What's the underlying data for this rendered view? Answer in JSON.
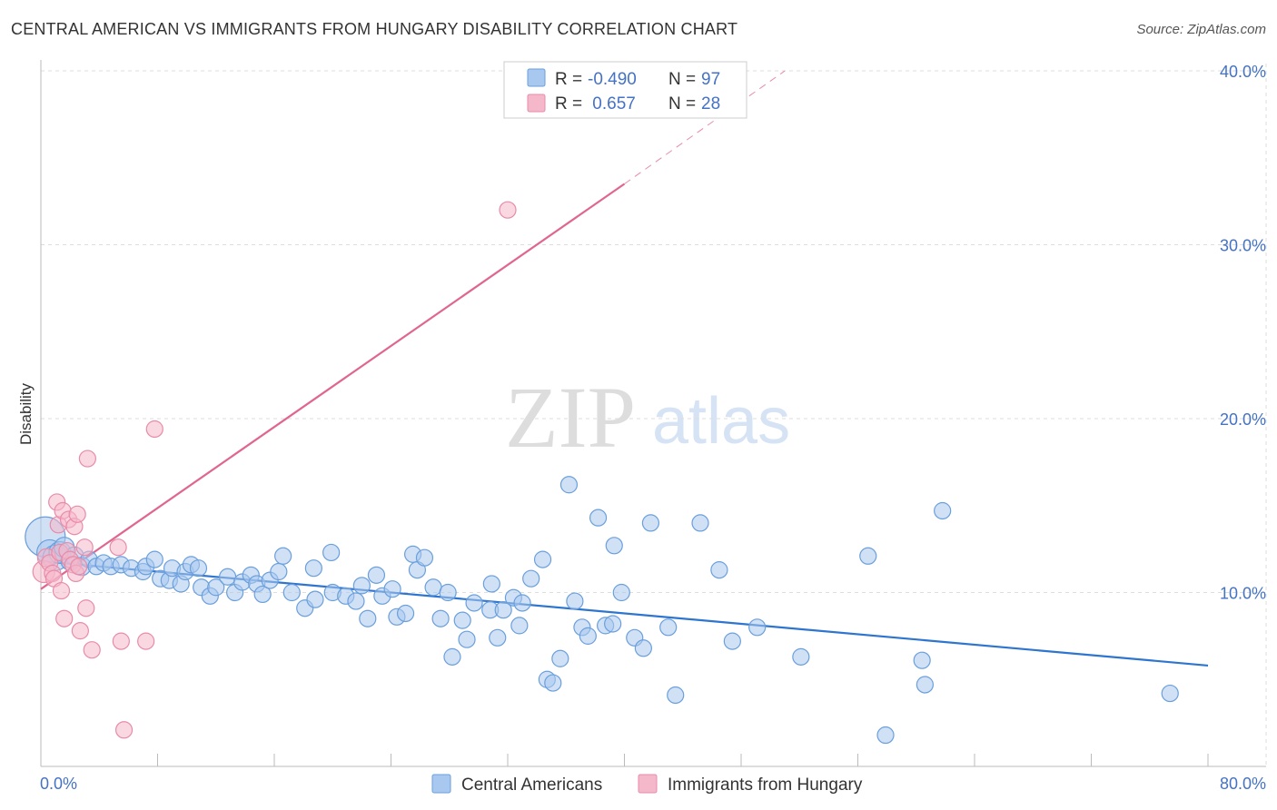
{
  "header": {
    "title": "CENTRAL AMERICAN VS IMMIGRANTS FROM HUNGARY DISABILITY CORRELATION CHART",
    "source": "Source: ZipAtlas.com"
  },
  "watermark": {
    "zip": "ZIP",
    "atlas": "atlas"
  },
  "colors": {
    "blue_fill": "#a9c8ef",
    "blue_stroke": "#6a9fdc",
    "blue_line": "#2e75d0",
    "pink_fill": "#f5b8cb",
    "pink_stroke": "#e88ba8",
    "pink_line": "#e06690",
    "grid": "#dddddd",
    "tick_label": "#4472c4"
  },
  "chart_data": {
    "type": "scatter",
    "title": "CENTRAL AMERICAN VS IMMIGRANTS FROM HUNGARY DISABILITY CORRELATION CHART",
    "xlabel": "",
    "ylabel": "Disability",
    "xlim": [
      0,
      80
    ],
    "ylim": [
      0,
      40
    ],
    "x_tick_labels": {
      "min": "0.0%",
      "max": "80.0%"
    },
    "y_ticks": [
      10,
      20,
      30,
      40
    ],
    "y_tick_labels": [
      "10.0%",
      "20.0%",
      "30.0%",
      "40.0%"
    ],
    "grid": true,
    "legend": {
      "position": "top-center",
      "rows": [
        {
          "r_label": "R =",
          "r_value": "-0.490",
          "n_label": "N =",
          "n_value": "97"
        },
        {
          "r_label": "R =",
          "r_value": " 0.657",
          "n_label": "N =",
          "n_value": "28"
        }
      ]
    },
    "series": [
      {
        "name": "Central Americans",
        "trend": {
          "x0": 0,
          "y0": 11.8,
          "x1": 80,
          "y1": 5.8,
          "dashed_to": null
        },
        "points": [
          [
            0.3,
            13.2,
            22
          ],
          [
            0.6,
            12.3,
            14
          ],
          [
            1.0,
            12.0,
            14
          ],
          [
            1.3,
            12.3,
            12
          ],
          [
            1.6,
            12.6,
            11
          ],
          [
            2.0,
            11.8,
            10
          ],
          [
            2.3,
            12.1,
            10
          ],
          [
            2.8,
            11.5,
            10
          ],
          [
            3.3,
            11.9,
            9
          ],
          [
            3.8,
            11.5,
            9
          ],
          [
            4.3,
            11.7,
            9
          ],
          [
            4.8,
            11.5,
            9
          ],
          [
            5.5,
            11.6,
            9
          ],
          [
            6.2,
            11.4,
            9
          ],
          [
            7.0,
            11.2,
            9
          ],
          [
            7.2,
            11.5,
            9
          ],
          [
            7.8,
            11.9,
            9
          ],
          [
            8.2,
            10.8,
            9
          ],
          [
            8.8,
            10.7,
            9
          ],
          [
            9.0,
            11.4,
            9
          ],
          [
            9.6,
            10.5,
            9
          ],
          [
            9.9,
            11.2,
            9
          ],
          [
            10.3,
            11.6,
            9
          ],
          [
            10.8,
            11.4,
            9
          ],
          [
            11.0,
            10.3,
            9
          ],
          [
            11.6,
            9.8,
            9
          ],
          [
            12.0,
            10.3,
            9
          ],
          [
            12.8,
            10.9,
            9
          ],
          [
            13.3,
            10.0,
            9
          ],
          [
            13.8,
            10.6,
            9
          ],
          [
            14.4,
            11.0,
            9
          ],
          [
            14.8,
            10.5,
            9
          ],
          [
            15.2,
            9.9,
            9
          ],
          [
            15.7,
            10.7,
            9
          ],
          [
            16.3,
            11.2,
            9
          ],
          [
            16.6,
            12.1,
            9
          ],
          [
            17.2,
            10.0,
            9
          ],
          [
            18.1,
            9.1,
            9
          ],
          [
            18.8,
            9.6,
            9
          ],
          [
            18.7,
            11.4,
            9
          ],
          [
            19.9,
            12.3,
            9
          ],
          [
            20.0,
            10.0,
            9
          ],
          [
            20.9,
            9.8,
            9
          ],
          [
            21.6,
            9.5,
            9
          ],
          [
            22.0,
            10.4,
            9
          ],
          [
            22.4,
            8.5,
            9
          ],
          [
            23.0,
            11.0,
            9
          ],
          [
            23.4,
            9.8,
            9
          ],
          [
            24.1,
            10.2,
            9
          ],
          [
            24.4,
            8.6,
            9
          ],
          [
            25.0,
            8.8,
            9
          ],
          [
            25.5,
            12.2,
            9
          ],
          [
            25.8,
            11.3,
            9
          ],
          [
            26.3,
            12.0,
            9
          ],
          [
            26.9,
            10.3,
            9
          ],
          [
            27.4,
            8.5,
            9
          ],
          [
            27.9,
            10.0,
            9
          ],
          [
            28.2,
            6.3,
            9
          ],
          [
            28.9,
            8.4,
            9
          ],
          [
            29.2,
            7.3,
            9
          ],
          [
            29.7,
            9.4,
            9
          ],
          [
            30.8,
            9.0,
            9
          ],
          [
            30.9,
            10.5,
            9
          ],
          [
            31.3,
            7.4,
            9
          ],
          [
            31.7,
            9.0,
            9
          ],
          [
            32.4,
            9.7,
            9
          ],
          [
            32.8,
            8.1,
            9
          ],
          [
            33.0,
            9.4,
            9
          ],
          [
            33.6,
            10.8,
            9
          ],
          [
            34.4,
            11.9,
            9
          ],
          [
            34.7,
            5.0,
            9
          ],
          [
            35.1,
            4.8,
            9
          ],
          [
            35.6,
            6.2,
            9
          ],
          [
            36.2,
            16.2,
            9
          ],
          [
            36.6,
            9.5,
            9
          ],
          [
            37.1,
            8.0,
            9
          ],
          [
            37.5,
            7.5,
            9
          ],
          [
            38.2,
            14.3,
            9
          ],
          [
            38.7,
            8.1,
            9
          ],
          [
            39.2,
            8.2,
            9
          ],
          [
            39.3,
            12.7,
            9
          ],
          [
            39.8,
            10.0,
            9
          ],
          [
            40.7,
            7.4,
            9
          ],
          [
            41.3,
            6.8,
            9
          ],
          [
            41.8,
            14.0,
            9
          ],
          [
            43.0,
            8.0,
            9
          ],
          [
            43.5,
            4.1,
            9
          ],
          [
            45.2,
            14.0,
            9
          ],
          [
            46.5,
            11.3,
            9
          ],
          [
            47.4,
            7.2,
            9
          ],
          [
            49.1,
            8.0,
            9
          ],
          [
            52.1,
            6.3,
            9
          ],
          [
            56.7,
            12.1,
            9
          ],
          [
            57.9,
            1.8,
            9
          ],
          [
            60.4,
            6.1,
            9
          ],
          [
            60.6,
            4.7,
            9
          ],
          [
            61.8,
            14.7,
            9
          ],
          [
            77.4,
            4.2,
            9
          ]
        ]
      },
      {
        "name": "Immigrants from Hungary",
        "trend": {
          "x0": 0,
          "y0": 10.2,
          "x1": 40,
          "y1": 33.5,
          "dashed_to": [
            51,
            40
          ]
        },
        "points": [
          [
            0.2,
            11.2,
            12
          ],
          [
            0.4,
            12.0,
            10
          ],
          [
            0.6,
            11.7,
            9
          ],
          [
            0.8,
            11.1,
            9
          ],
          [
            0.9,
            10.8,
            9
          ],
          [
            1.1,
            15.2,
            9
          ],
          [
            1.2,
            13.9,
            9
          ],
          [
            1.3,
            12.3,
            9
          ],
          [
            1.4,
            10.1,
            9
          ],
          [
            1.5,
            14.7,
            9
          ],
          [
            1.6,
            8.5,
            9
          ],
          [
            1.8,
            12.4,
            9
          ],
          [
            1.9,
            14.2,
            9
          ],
          [
            2.0,
            11.9,
            9
          ],
          [
            2.2,
            11.6,
            9
          ],
          [
            2.3,
            13.8,
            9
          ],
          [
            2.4,
            11.1,
            9
          ],
          [
            2.5,
            14.5,
            9
          ],
          [
            2.6,
            11.5,
            9
          ],
          [
            2.7,
            7.8,
            9
          ],
          [
            3.0,
            12.6,
            9
          ],
          [
            3.1,
            9.1,
            9
          ],
          [
            3.2,
            17.7,
            9
          ],
          [
            3.5,
            6.7,
            9
          ],
          [
            5.3,
            12.6,
            9
          ],
          [
            5.5,
            7.2,
            9
          ],
          [
            5.7,
            2.1,
            9
          ],
          [
            7.2,
            7.2,
            9
          ],
          [
            7.8,
            19.4,
            9
          ],
          [
            32.0,
            32.0,
            9
          ]
        ]
      }
    ]
  }
}
